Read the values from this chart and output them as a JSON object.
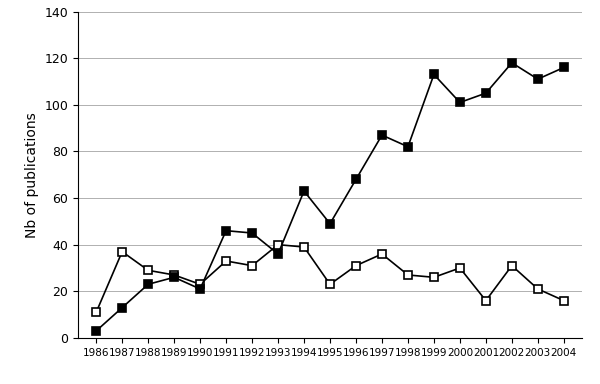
{
  "years": [
    1986,
    1987,
    1988,
    1989,
    1990,
    1991,
    1992,
    1993,
    1994,
    1995,
    1996,
    1997,
    1998,
    1999,
    2000,
    2001,
    2002,
    2003,
    2004
  ],
  "icp_aes": [
    11,
    37,
    29,
    27,
    23,
    33,
    31,
    40,
    39,
    23,
    31,
    36,
    27,
    26,
    30,
    16,
    31,
    21,
    16
  ],
  "icp_ms": [
    3,
    13,
    23,
    26,
    21,
    46,
    45,
    36,
    63,
    49,
    68,
    87,
    82,
    113,
    101,
    105,
    118,
    111,
    116
  ],
  "ylim": [
    0,
    140
  ],
  "yticks": [
    0,
    20,
    40,
    60,
    80,
    100,
    120,
    140
  ],
  "ylabel": "Nb of publications",
  "bg_color": "#ffffff",
  "line_color": "#000000"
}
